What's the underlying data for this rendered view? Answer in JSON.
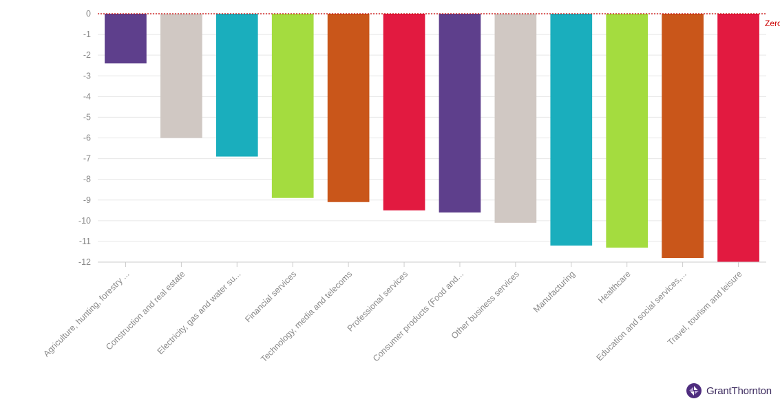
{
  "chart_data": {
    "type": "bar",
    "categories": [
      "Agriculture, hunting, forestry ...",
      "Construction and real estate",
      "Electricity, gas and water su...",
      "Financial services",
      "Technology, media and telecoms",
      "Professional services",
      "Consumer products (Food and...",
      "Other business services",
      "Manufacturing",
      "Healthcare",
      "Education and social services,...",
      "Travel, tourism and leisure"
    ],
    "values": [
      -2.4,
      -6.0,
      -6.9,
      -8.9,
      -9.1,
      -9.5,
      -9.6,
      -10.1,
      -11.2,
      -11.3,
      -11.8,
      -12.0
    ],
    "colors": [
      "#5e3f8c",
      "#d0c8c3",
      "#1aaebd",
      "#a4dc3f",
      "#c9561a",
      "#e21a40",
      "#5e3f8c",
      "#d0c8c3",
      "#1aaebd",
      "#a4dc3f",
      "#c9561a",
      "#e21a40"
    ],
    "ylim": [
      -12,
      0
    ],
    "yticks": [
      0,
      -1,
      -2,
      -3,
      -4,
      -5,
      -6,
      -7,
      -8,
      -9,
      -10,
      -11,
      -12
    ],
    "reference_line": {
      "value": 0,
      "label": "Zero",
      "color": "#cc0000"
    },
    "grid": true,
    "title": "",
    "xlabel": "",
    "ylabel": ""
  },
  "branding": {
    "logo_text": "GrantThornton",
    "logo_color": "#4f2d7f"
  }
}
